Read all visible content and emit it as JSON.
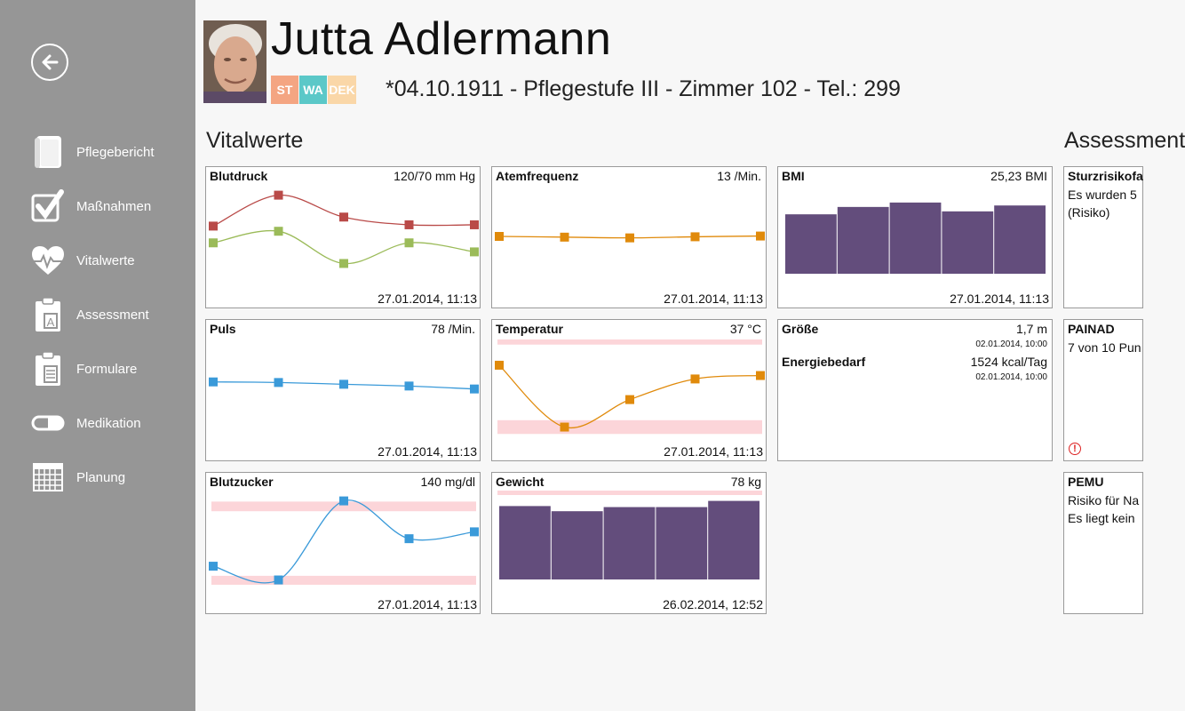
{
  "nav": {
    "back_icon": "back-arrow-icon",
    "items": [
      {
        "label": "Pflegebericht",
        "icon": "book-icon"
      },
      {
        "label": "Maßnahmen",
        "icon": "checkmark-icon"
      },
      {
        "label": "Vitalwerte",
        "icon": "heart-pulse-icon"
      },
      {
        "label": "Assessment",
        "icon": "clipboard-a-icon"
      },
      {
        "label": "Formulare",
        "icon": "clipboard-form-icon"
      },
      {
        "label": "Medikation",
        "icon": "pill-icon"
      },
      {
        "label": "Planung",
        "icon": "calendar-icon"
      }
    ]
  },
  "patient": {
    "name": "Jutta Adlermann",
    "tags": [
      {
        "label": "ST",
        "color": "#f4a582"
      },
      {
        "label": "WA",
        "color": "#5bc8c8"
      },
      {
        "label": "DEK",
        "color": "#fad7a8"
      }
    ],
    "info": "*04.10.1911 - Pflegestufe III - Zimmer 102 - Tel.: 299"
  },
  "sections": {
    "vitals": "Vitalwerte",
    "assessment": "Assessment"
  },
  "vitals": {
    "blutdruck": {
      "name": "Blutdruck",
      "value": "120/70 mm Hg",
      "date": "27.01.2014, 11:13"
    },
    "atemfrequenz": {
      "name": "Atemfrequenz",
      "value": "13 /Min.",
      "date": "27.01.2014, 11:13"
    },
    "bmi": {
      "name": "BMI",
      "value": "25,23 BMI",
      "date": "27.01.2014, 11:13"
    },
    "puls": {
      "name": "Puls",
      "value": "78 /Min.",
      "date": "27.01.2014, 11:13"
    },
    "temperatur": {
      "name": "Temperatur",
      "value": "37 °C",
      "date": "27.01.2014, 11:13"
    },
    "groesse_energie": {
      "groesse_name": "Größe",
      "groesse_value": "1,7 m",
      "groesse_date": "02.01.2014, 10:00",
      "energie_name": "Energiebedarf",
      "energie_value": "1524 kcal/Tag",
      "energie_date": "02.01.2014, 10:00"
    },
    "blutzucker": {
      "name": "Blutzucker",
      "value": "140 mg/dl",
      "date": "27.01.2014, 11:13"
    },
    "gewicht": {
      "name": "Gewicht",
      "value": "78 kg",
      "date": "26.02.2014, 12:52"
    }
  },
  "assessments": [
    {
      "name": "Sturzrisikofa",
      "lines": [
        "Es wurden 5",
        "(Risiko)"
      ],
      "warning": false
    },
    {
      "name": "PAINAD",
      "lines": [
        "7 von 10 Pun"
      ],
      "warning": true
    },
    {
      "name": "PEMU",
      "lines": [
        "Risiko für Na",
        "Es liegt kein"
      ],
      "warning": false
    }
  ],
  "colors": {
    "sidebar": "#969696",
    "bp_systolic": "#b94a48",
    "bp_diastolic": "#9bbb59",
    "orange": "#e08a0b",
    "blue": "#3a9ad9",
    "purple": "#634d7c",
    "range_band": "#fcd5d9",
    "warning": "#dd2222"
  },
  "chart_data": [
    {
      "type": "line",
      "id": "blutdruck",
      "series": [
        {
          "values": [
            128,
            152,
            135,
            129,
            129
          ]
        },
        {
          "values": [
            115,
            124,
            99,
            115,
            108
          ]
        }
      ],
      "ylim": [
        80,
        160
      ]
    },
    {
      "type": "line",
      "id": "atemfrequenz",
      "series": [
        {
          "values": [
            13.0,
            12.9,
            12.8,
            12.95,
            13.05
          ]
        }
      ],
      "ylim": [
        6,
        20
      ]
    },
    {
      "type": "bar",
      "id": "bmi",
      "values": [
        25.0,
        25.5,
        25.8,
        25.2,
        25.6
      ],
      "ylim": [
        20,
        27
      ]
    },
    {
      "type": "line",
      "id": "puls",
      "series": [
        {
          "values": [
            80,
            79.8,
            79.2,
            78.6,
            77.6
          ]
        }
      ],
      "ylim": [
        60,
        95
      ]
    },
    {
      "type": "line",
      "id": "temperatur",
      "series": [
        {
          "values": [
            38.2,
            36.4,
            37.2,
            37.8,
            37.9
          ]
        }
      ],
      "ylim": [
        36,
        39
      ],
      "bands": [
        [
          38.8,
          38.95
        ],
        [
          36.2,
          36.6
        ]
      ]
    },
    {
      "type": "line",
      "id": "blutzucker",
      "series": [
        {
          "values": [
            100,
            80,
            195,
            140,
            150
          ]
        }
      ],
      "ylim": [
        60,
        210
      ],
      "bands": [
        [
          180,
          194
        ],
        [
          73,
          86
        ]
      ]
    },
    {
      "type": "bar",
      "id": "gewicht",
      "values": [
        77,
        76,
        76.8,
        76.8,
        78
      ],
      "ylim": [
        60,
        80
      ],
      "bands": [
        [
          79.7,
          80
        ]
      ]
    }
  ]
}
